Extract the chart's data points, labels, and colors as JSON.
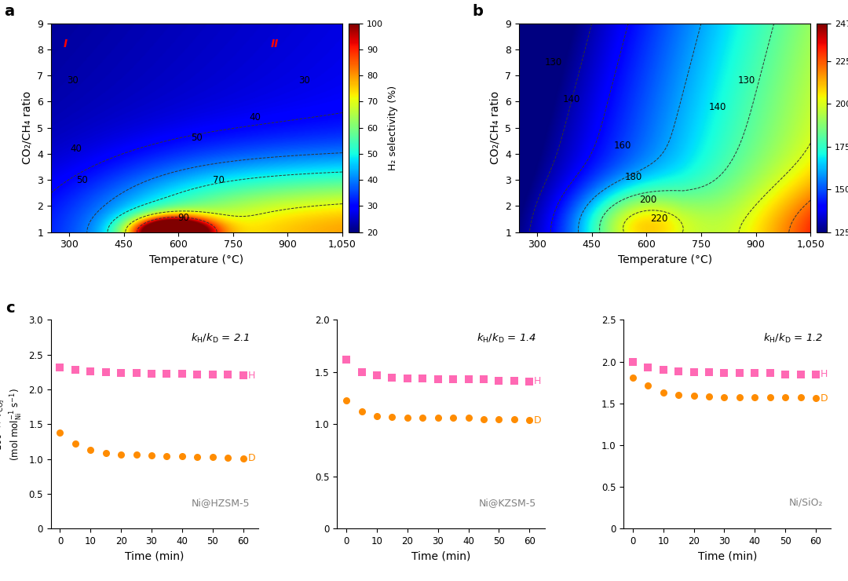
{
  "panel_a": {
    "title": "a",
    "xlabel": "Temperature (°C)",
    "ylabel": "CO₂/CH₄ ratio",
    "cbar_label": "H₂ selectivity (%)",
    "cbar_ticks": [
      20.0,
      30.0,
      40.0,
      50.0,
      60.0,
      70.0,
      80.0,
      90.0,
      100.0
    ],
    "vmin": 20,
    "vmax": 100,
    "temp_range": [
      250,
      1050
    ],
    "ratio_range": [
      1,
      9
    ],
    "contour_levels": [
      30,
      40,
      50,
      70,
      90
    ],
    "label_I": [
      290,
      8.1
    ],
    "label_II": [
      865,
      8.1
    ],
    "xticks": [
      300,
      450,
      600,
      750,
      900,
      1050
    ],
    "xticklabels": [
      "300",
      "450",
      "600",
      "750",
      "900",
      "1,050"
    ],
    "yticks": [
      1,
      2,
      3,
      4,
      5,
      6,
      7,
      8,
      9
    ]
  },
  "panel_b": {
    "title": "b",
    "xlabel": "Temperature (°C)",
    "ylabel": "CO₂/CH₄ ratio",
    "cbar_ticks": [
      125.0,
      150.0,
      175.0,
      200.0,
      225.0,
      247.0
    ],
    "vmin": 125,
    "vmax": 247,
    "temp_range": [
      250,
      1050
    ],
    "ratio_range": [
      1,
      9
    ],
    "contour_levels": [
      130,
      140,
      160,
      180,
      200,
      220
    ],
    "xticks": [
      300,
      450,
      600,
      750,
      900,
      1050
    ],
    "xticklabels": [
      "300",
      "450",
      "600",
      "750",
      "900",
      "1,050"
    ],
    "yticks": [
      1,
      2,
      3,
      4,
      5,
      6,
      7,
      8,
      9
    ]
  },
  "panel_c1": {
    "title": "Ni@HZSM-5",
    "kHkD": "2.1",
    "ylim": [
      0,
      3.0
    ],
    "yticks": [
      0,
      0.5,
      1.0,
      1.5,
      2.0,
      2.5,
      3.0
    ],
    "H_x": [
      0,
      5,
      10,
      15,
      20,
      25,
      30,
      35,
      40,
      45,
      50,
      55,
      60
    ],
    "H_y": [
      2.32,
      2.28,
      2.26,
      2.25,
      2.24,
      2.24,
      2.23,
      2.23,
      2.23,
      2.22,
      2.22,
      2.21,
      2.2
    ],
    "D_x": [
      0,
      5,
      10,
      15,
      20,
      25,
      30,
      35,
      40,
      45,
      50,
      55,
      60
    ],
    "D_y": [
      1.38,
      1.22,
      1.13,
      1.09,
      1.06,
      1.06,
      1.05,
      1.04,
      1.04,
      1.03,
      1.03,
      1.02,
      1.01
    ]
  },
  "panel_c2": {
    "title": "Ni@KZSM-5",
    "kHkD": "1.4",
    "ylim": [
      0,
      2.0
    ],
    "yticks": [
      0,
      0.5,
      1.0,
      1.5,
      2.0
    ],
    "H_x": [
      0,
      5,
      10,
      15,
      20,
      25,
      30,
      35,
      40,
      45,
      50,
      55,
      60
    ],
    "H_y": [
      1.62,
      1.5,
      1.47,
      1.45,
      1.44,
      1.44,
      1.43,
      1.43,
      1.43,
      1.43,
      1.42,
      1.42,
      1.41
    ],
    "D_x": [
      0,
      5,
      10,
      15,
      20,
      25,
      30,
      35,
      40,
      45,
      50,
      55,
      60
    ],
    "D_y": [
      1.23,
      1.12,
      1.08,
      1.07,
      1.06,
      1.06,
      1.06,
      1.06,
      1.06,
      1.05,
      1.05,
      1.05,
      1.04
    ]
  },
  "panel_c3": {
    "title": "Ni/SiO₂",
    "kHkD": "1.2",
    "ylim": [
      0,
      2.5
    ],
    "yticks": [
      0,
      0.5,
      1.0,
      1.5,
      2.0,
      2.5
    ],
    "H_x": [
      0,
      5,
      10,
      15,
      20,
      25,
      30,
      35,
      40,
      45,
      50,
      55,
      60
    ],
    "H_y": [
      2.0,
      1.93,
      1.9,
      1.88,
      1.87,
      1.87,
      1.86,
      1.86,
      1.86,
      1.86,
      1.85,
      1.85,
      1.85
    ],
    "D_x": [
      0,
      5,
      10,
      15,
      20,
      25,
      30,
      35,
      40,
      45,
      50,
      55,
      60
    ],
    "D_y": [
      1.81,
      1.71,
      1.63,
      1.6,
      1.59,
      1.58,
      1.57,
      1.57,
      1.57,
      1.57,
      1.57,
      1.57,
      1.56
    ]
  },
  "colors": {
    "H_color": "#FF69B4",
    "D_color": "#FF8C00",
    "contour_color": "#333333"
  }
}
